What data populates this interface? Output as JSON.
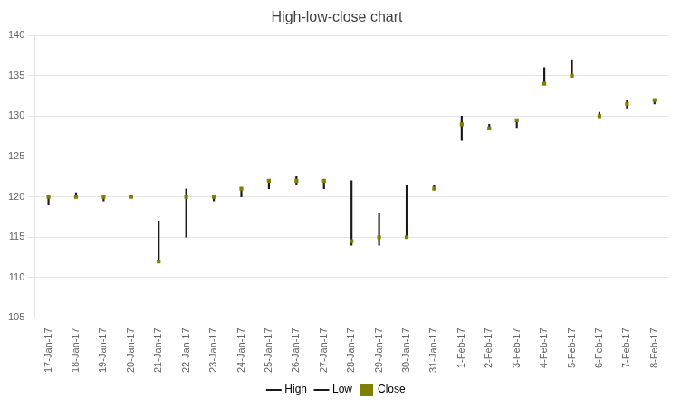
{
  "chart_data": {
    "type": "hlc",
    "title": "High-low-close chart",
    "categories": [
      "17-Jan-17",
      "18-Jan-17",
      "19-Jan-17",
      "20-Jan-17",
      "21-Jan-17",
      "22-Jan-17",
      "23-Jan-17",
      "24-Jan-17",
      "25-Jan-17",
      "26-Jan-17",
      "27-Jan-17",
      "28-Jan-17",
      "29-Jan-17",
      "30-Jan-17",
      "31-Jan-17",
      "1-Feb-17",
      "2-Feb-17",
      "3-Feb-17",
      "4-Feb-17",
      "5-Feb-17",
      "6-Feb-17",
      "7-Feb-17",
      "8-Feb-17"
    ],
    "series": [
      {
        "name": "High",
        "color": "#1a1a1a",
        "values": [
          120,
          120.5,
          120,
          120,
          117,
          121,
          120,
          121,
          122,
          122.5,
          122,
          122,
          118,
          121.5,
          121.5,
          130,
          129,
          129.5,
          136,
          137,
          130.5,
          132,
          132
        ]
      },
      {
        "name": "Low",
        "color": "#1a1a1a",
        "values": [
          119,
          120,
          119.5,
          120,
          112,
          115,
          119.5,
          120,
          121,
          121.5,
          121,
          114,
          114,
          115,
          121,
          127,
          128.5,
          128.5,
          134,
          135,
          130,
          131,
          131.5
        ]
      },
      {
        "name": "Close",
        "color": "#808000",
        "marker": "square",
        "values": [
          120,
          120,
          120,
          120,
          112,
          120,
          120,
          121,
          122,
          122,
          122,
          114.5,
          115,
          115,
          121,
          129,
          128.5,
          129.5,
          134,
          135,
          130,
          131.5,
          132
        ]
      }
    ],
    "ylim": [
      105,
      140
    ],
    "yticks": [
      105,
      110,
      115,
      120,
      125,
      130,
      135,
      140
    ],
    "grid": true,
    "legend": "bottom"
  }
}
